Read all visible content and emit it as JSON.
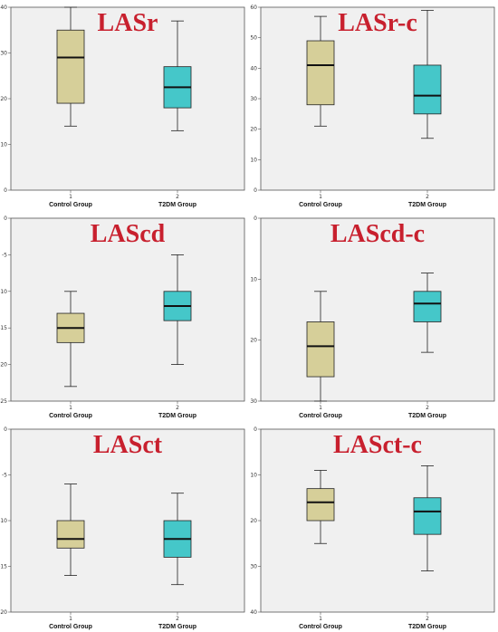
{
  "colors": {
    "control": "#d6cf99",
    "t2dm": "#45c7c9",
    "plot_bg": "#f0f0f0",
    "title": "#c8202e"
  },
  "chart_data": [
    {
      "type": "boxplot",
      "title": "LASr",
      "ylim": [
        0,
        40
      ],
      "yticks": [
        0,
        10,
        20,
        30,
        40
      ],
      "categories": [
        "Control  Group",
        "T2DM  Group"
      ],
      "category_numbers": [
        "1",
        "2"
      ],
      "boxes": [
        {
          "min": 14,
          "q1": 19,
          "median": 29,
          "q3": 35,
          "max": 40
        },
        {
          "min": 13,
          "q1": 18,
          "median": 22.5,
          "q3": 27,
          "max": 37
        }
      ]
    },
    {
      "type": "boxplot",
      "title": "LASr-c",
      "ylim": [
        0,
        60
      ],
      "yticks": [
        0,
        10,
        20,
        30,
        40,
        50,
        60
      ],
      "categories": [
        "Control  Group",
        "T2DM  Group"
      ],
      "category_numbers": [
        "1",
        "2"
      ],
      "boxes": [
        {
          "min": 21,
          "q1": 28,
          "median": 41,
          "q3": 49,
          "max": 57
        },
        {
          "min": 17,
          "q1": 25,
          "median": 31,
          "q3": 41,
          "max": 59
        }
      ]
    },
    {
      "type": "boxplot",
      "title": "LAScd",
      "ylim": [
        -25,
        0
      ],
      "yticks": [
        -25,
        -20,
        -15,
        -10,
        -5,
        0
      ],
      "categories": [
        "Control  Group",
        "T2DM  Group"
      ],
      "category_numbers": [
        "1",
        "2"
      ],
      "boxes": [
        {
          "min": -23,
          "q1": -17,
          "median": -15,
          "q3": -13,
          "max": -10
        },
        {
          "min": -20,
          "q1": -14,
          "median": -12,
          "q3": -10,
          "max": -5
        }
      ]
    },
    {
      "type": "boxplot",
      "title": "LAScd-c",
      "ylim": [
        -30,
        0
      ],
      "yticks": [
        -30,
        -20,
        -10,
        0
      ],
      "categories": [
        "Control  Group",
        "T2DM  Group"
      ],
      "category_numbers": [
        "1",
        "2"
      ],
      "boxes": [
        {
          "min": -30,
          "q1": -26,
          "median": -21,
          "q3": -17,
          "max": -12
        },
        {
          "min": -22,
          "q1": -17,
          "median": -14,
          "q3": -12,
          "max": -9
        }
      ]
    },
    {
      "type": "boxplot",
      "title": "LASct",
      "ylim": [
        -20,
        0
      ],
      "yticks": [
        -20,
        -15,
        -10,
        -5,
        0
      ],
      "categories": [
        "Control  Group",
        "T2DM  Group"
      ],
      "category_numbers": [
        "1",
        "2"
      ],
      "boxes": [
        {
          "min": -16,
          "q1": -13,
          "median": -12,
          "q3": -10,
          "max": -6
        },
        {
          "min": -17,
          "q1": -14,
          "median": -12,
          "q3": -10,
          "max": -7
        }
      ]
    },
    {
      "type": "boxplot",
      "title": "LASct-c",
      "ylim": [
        -40,
        0
      ],
      "yticks": [
        -40,
        -30,
        -20,
        -10,
        0
      ],
      "categories": [
        "Control  Group",
        "T2DM  Group"
      ],
      "category_numbers": [
        "1",
        "2"
      ],
      "boxes": [
        {
          "min": -25,
          "q1": -20,
          "median": -16,
          "q3": -13,
          "max": -9
        },
        {
          "min": -31,
          "q1": -23,
          "median": -18,
          "q3": -15,
          "max": -8
        }
      ]
    }
  ]
}
